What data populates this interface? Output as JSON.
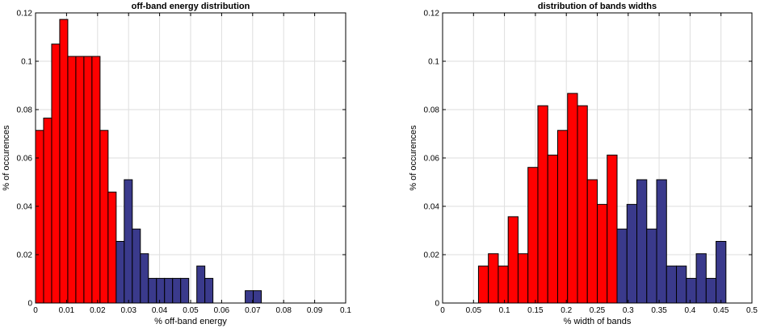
{
  "chart_data": [
    {
      "type": "bar",
      "title": "off-band energy distribution",
      "xlabel": "% off-band energy",
      "ylabel": "% of occurences",
      "xlim": [
        0,
        0.1
      ],
      "ylim": [
        0,
        0.12
      ],
      "xticks": [
        0,
        0.01,
        0.02,
        0.03,
        0.04,
        0.05,
        0.06,
        0.07,
        0.08,
        0.09,
        0.1
      ],
      "xtick_labels": [
        "0",
        "0.01",
        "0.02",
        "0.03",
        "0.04",
        "0.05",
        "0.06",
        "0.07",
        "0.08",
        "0.09",
        "0.1"
      ],
      "yticks": [
        0,
        0.02,
        0.04,
        0.06,
        0.08,
        0.1,
        0.12
      ],
      "ytick_labels": [
        "0",
        "0.02",
        "0.04",
        "0.06",
        "0.08",
        "0.1",
        "0.12"
      ],
      "grid": true,
      "bin_width": 0.0026,
      "bars": [
        {
          "x": 0.0,
          "y": 0.0714,
          "color": "#ff0000"
        },
        {
          "x": 0.0026,
          "y": 0.0765,
          "color": "#ff0000"
        },
        {
          "x": 0.0052,
          "y": 0.1071,
          "color": "#ff0000"
        },
        {
          "x": 0.0078,
          "y": 0.1173,
          "color": "#ff0000"
        },
        {
          "x": 0.0104,
          "y": 0.102,
          "color": "#ff0000"
        },
        {
          "x": 0.013,
          "y": 0.102,
          "color": "#ff0000"
        },
        {
          "x": 0.0156,
          "y": 0.102,
          "color": "#ff0000"
        },
        {
          "x": 0.0182,
          "y": 0.102,
          "color": "#ff0000"
        },
        {
          "x": 0.0208,
          "y": 0.0714,
          "color": "#ff0000"
        },
        {
          "x": 0.0234,
          "y": 0.0459,
          "color": "#ff0000"
        },
        {
          "x": 0.026,
          "y": 0.0255,
          "color": "#3a3a8c"
        },
        {
          "x": 0.0286,
          "y": 0.051,
          "color": "#3a3a8c"
        },
        {
          "x": 0.0312,
          "y": 0.0306,
          "color": "#3a3a8c"
        },
        {
          "x": 0.0338,
          "y": 0.0204,
          "color": "#3a3a8c"
        },
        {
          "x": 0.0364,
          "y": 0.0102,
          "color": "#3a3a8c"
        },
        {
          "x": 0.039,
          "y": 0.0102,
          "color": "#3a3a8c"
        },
        {
          "x": 0.0416,
          "y": 0.0102,
          "color": "#3a3a8c"
        },
        {
          "x": 0.0442,
          "y": 0.0102,
          "color": "#3a3a8c"
        },
        {
          "x": 0.0468,
          "y": 0.0102,
          "color": "#3a3a8c"
        },
        {
          "x": 0.052,
          "y": 0.0153,
          "color": "#3a3a8c"
        },
        {
          "x": 0.0546,
          "y": 0.0102,
          "color": "#3a3a8c"
        },
        {
          "x": 0.0676,
          "y": 0.0051,
          "color": "#3a3a8c"
        },
        {
          "x": 0.0702,
          "y": 0.0051,
          "color": "#3a3a8c"
        }
      ]
    },
    {
      "type": "bar",
      "title": "distribution of bands widths",
      "xlabel": "% width of bands",
      "ylabel": "% of occurences",
      "xlim": [
        0,
        0.5
      ],
      "ylim": [
        0,
        0.12
      ],
      "xticks": [
        0,
        0.05,
        0.1,
        0.15,
        0.2,
        0.25,
        0.3,
        0.35,
        0.4,
        0.45,
        0.5
      ],
      "xtick_labels": [
        "0",
        "0.05",
        "0.1",
        "0.15",
        "0.2",
        "0.25",
        "0.3",
        "0.35",
        "0.4",
        "0.45",
        "0.5"
      ],
      "yticks": [
        0,
        0.02,
        0.04,
        0.06,
        0.08,
        0.1,
        0.12
      ],
      "ytick_labels": [
        "0",
        "0.02",
        "0.04",
        "0.06",
        "0.08",
        "0.1",
        "0.12"
      ],
      "grid": true,
      "bin_width": 0.016,
      "bars": [
        {
          "x": 0.058,
          "y": 0.0153,
          "color": "#ff0000"
        },
        {
          "x": 0.074,
          "y": 0.0204,
          "color": "#ff0000"
        },
        {
          "x": 0.09,
          "y": 0.0153,
          "color": "#ff0000"
        },
        {
          "x": 0.106,
          "y": 0.0357,
          "color": "#ff0000"
        },
        {
          "x": 0.122,
          "y": 0.0204,
          "color": "#ff0000"
        },
        {
          "x": 0.138,
          "y": 0.0561,
          "color": "#ff0000"
        },
        {
          "x": 0.154,
          "y": 0.0816,
          "color": "#ff0000"
        },
        {
          "x": 0.17,
          "y": 0.0612,
          "color": "#ff0000"
        },
        {
          "x": 0.186,
          "y": 0.0714,
          "color": "#ff0000"
        },
        {
          "x": 0.202,
          "y": 0.0867,
          "color": "#ff0000"
        },
        {
          "x": 0.218,
          "y": 0.0816,
          "color": "#ff0000"
        },
        {
          "x": 0.234,
          "y": 0.051,
          "color": "#ff0000"
        },
        {
          "x": 0.25,
          "y": 0.0408,
          "color": "#ff0000"
        },
        {
          "x": 0.266,
          "y": 0.0612,
          "color": "#ff0000"
        },
        {
          "x": 0.282,
          "y": 0.0306,
          "color": "#3a3a8c"
        },
        {
          "x": 0.298,
          "y": 0.0408,
          "color": "#3a3a8c"
        },
        {
          "x": 0.314,
          "y": 0.051,
          "color": "#3a3a8c"
        },
        {
          "x": 0.33,
          "y": 0.0306,
          "color": "#3a3a8c"
        },
        {
          "x": 0.346,
          "y": 0.051,
          "color": "#3a3a8c"
        },
        {
          "x": 0.362,
          "y": 0.0153,
          "color": "#3a3a8c"
        },
        {
          "x": 0.378,
          "y": 0.0153,
          "color": "#3a3a8c"
        },
        {
          "x": 0.394,
          "y": 0.0102,
          "color": "#3a3a8c"
        },
        {
          "x": 0.41,
          "y": 0.0204,
          "color": "#3a3a8c"
        },
        {
          "x": 0.426,
          "y": 0.0102,
          "color": "#3a3a8c"
        },
        {
          "x": 0.442,
          "y": 0.0255,
          "color": "#3a3a8c"
        }
      ]
    }
  ]
}
